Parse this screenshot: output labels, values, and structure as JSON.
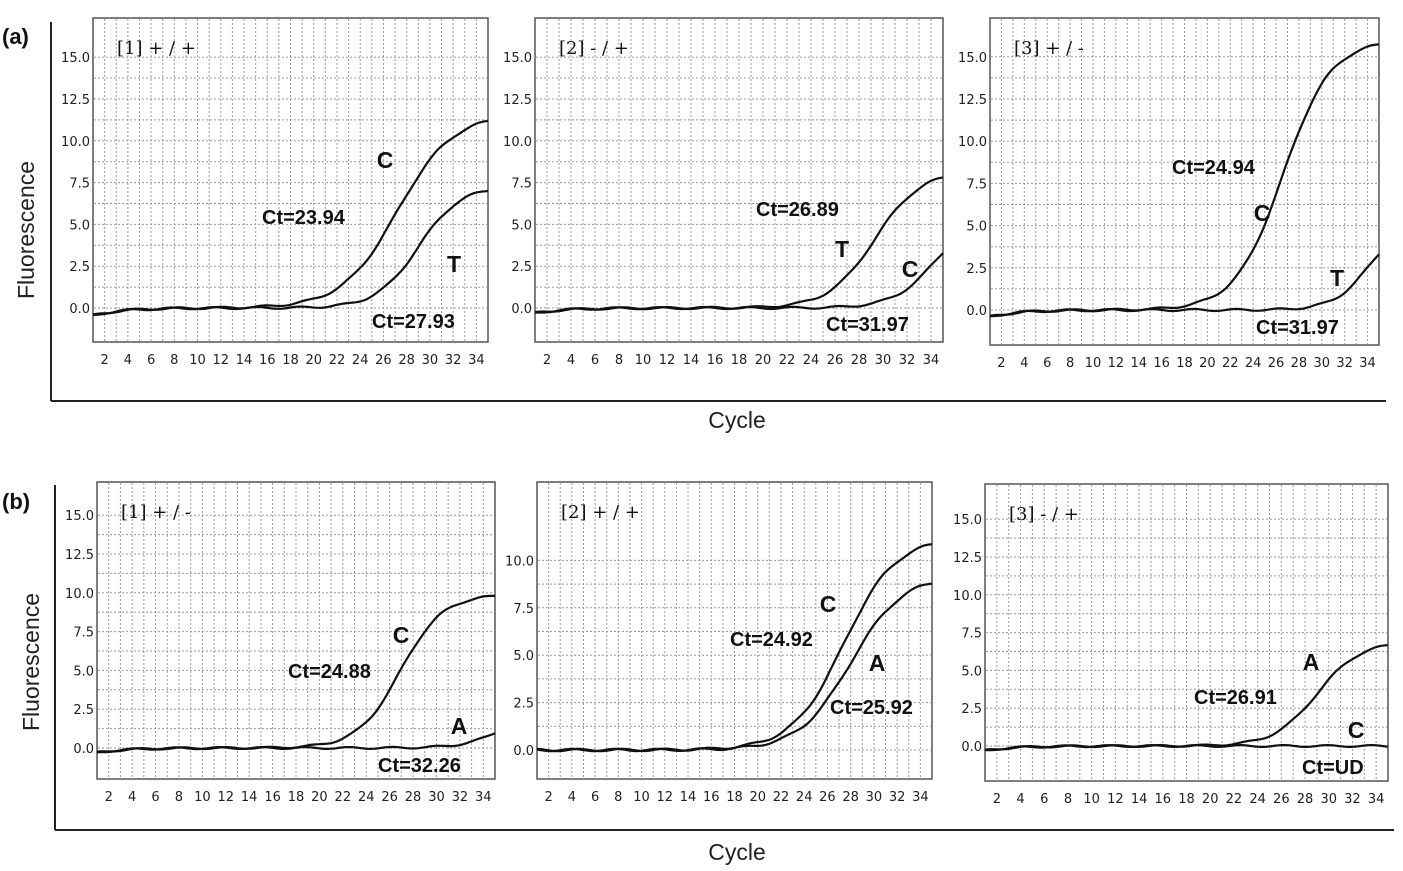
{
  "figure": {
    "rows": [
      {
        "panel_label": "(a)",
        "ylabel": "Fluorescence",
        "xlabel": "Cycle"
      },
      {
        "panel_label": "(b)",
        "ylabel": "Fluorescence",
        "xlabel": "Cycle"
      }
    ]
  },
  "chart_data": [
    {
      "type": "line",
      "title": "[1] + / +",
      "xlabel": "Cycle",
      "ylabel": "Fluorescence",
      "xlim": [
        1,
        35
      ],
      "ylim": [
        -1,
        17
      ],
      "xticks": [
        2,
        4,
        6,
        8,
        10,
        12,
        14,
        16,
        18,
        20,
        22,
        24,
        26,
        28,
        30,
        32,
        34
      ],
      "yticks": [
        0.0,
        2.5,
        5.0,
        7.5,
        10.0,
        12.5,
        15.0
      ],
      "grid": true,
      "series": [
        {
          "name": "C",
          "ct_label": "Ct=23.94",
          "baseline": -0.45,
          "plateau": 11.6,
          "midpoint": 27.2,
          "slope": 0.42
        },
        {
          "name": "T",
          "ct_label": "Ct=27.93",
          "baseline": -0.45,
          "plateau": 7.3,
          "midpoint": 29.0,
          "slope": 0.55
        }
      ]
    },
    {
      "type": "line",
      "title": "[2] - / +",
      "xlabel": "Cycle",
      "ylabel": "Fluorescence",
      "xlim": [
        1,
        35
      ],
      "ylim": [
        -1,
        17
      ],
      "xticks": [
        2,
        4,
        6,
        8,
        10,
        12,
        14,
        16,
        18,
        20,
        22,
        24,
        26,
        28,
        30,
        32,
        34
      ],
      "yticks": [
        0.0,
        2.5,
        5.0,
        7.5,
        10.0,
        12.5,
        15.0
      ],
      "grid": true,
      "series": [
        {
          "name": "T",
          "ct_label": "Ct=26.89",
          "baseline": -0.3,
          "plateau": 8.2,
          "midpoint": 29.3,
          "slope": 0.52
        },
        {
          "name": "C",
          "ct_label": "Ct=31.97",
          "baseline": -0.3,
          "plateau": 6.0,
          "midpoint": 34.6,
          "slope": 0.55
        }
      ]
    },
    {
      "type": "line",
      "title": "[3] + / -",
      "xlabel": "Cycle",
      "ylabel": "Fluorescence",
      "xlim": [
        1,
        35
      ],
      "ylim": [
        -1,
        17
      ],
      "xticks": [
        2,
        4,
        6,
        8,
        10,
        12,
        14,
        16,
        18,
        20,
        22,
        24,
        26,
        28,
        30,
        32,
        34
      ],
      "yticks": [
        0.0,
        2.5,
        5.0,
        7.5,
        10.0,
        12.5,
        15.0
      ],
      "grid": true,
      "series": [
        {
          "name": "C",
          "ct_label": "Ct=24.94",
          "baseline": -0.4,
          "plateau": 16.0,
          "midpoint": 26.6,
          "slope": 0.48
        },
        {
          "name": "T",
          "ct_label": "Ct=31.97",
          "baseline": -0.4,
          "plateau": 5.5,
          "midpoint": 34.3,
          "slope": 0.62
        }
      ]
    },
    {
      "type": "line",
      "title": "[1] + / -",
      "xlabel": "Cycle",
      "ylabel": "Fluorescence",
      "xlim": [
        1,
        35
      ],
      "ylim": [
        -1,
        17
      ],
      "xticks": [
        2,
        4,
        6,
        8,
        10,
        12,
        14,
        16,
        18,
        20,
        22,
        24,
        26,
        28,
        30,
        32,
        34
      ],
      "yticks": [
        0.0,
        2.5,
        5.0,
        7.5,
        10.0,
        12.5,
        15.0
      ],
      "grid": true,
      "series": [
        {
          "name": "C",
          "ct_label": "Ct=24.88",
          "baseline": -0.3,
          "plateau": 9.9,
          "midpoint": 26.9,
          "slope": 0.55
        },
        {
          "name": "A",
          "ct_label": "Ct=32.26",
          "baseline": -0.3,
          "plateau": 4.0,
          "midpoint": 37.0,
          "slope": 0.55
        }
      ]
    },
    {
      "type": "line",
      "title": "[2] + / +",
      "xlabel": "Cycle",
      "ylabel": "Fluorescence",
      "xlim": [
        1,
        35
      ],
      "ylim": [
        -1,
        12
      ],
      "xticks": [
        2,
        4,
        6,
        8,
        10,
        12,
        14,
        16,
        18,
        20,
        22,
        24,
        26,
        28,
        30,
        32,
        34
      ],
      "yticks": [
        0.0,
        2.5,
        5.0,
        7.5,
        10.0
      ],
      "grid": true,
      "series": [
        {
          "name": "C",
          "ct_label": "Ct=24.92",
          "baseline": 0.0,
          "plateau": 11.2,
          "midpoint": 27.4,
          "slope": 0.45
        },
        {
          "name": "A",
          "ct_label": "Ct=25.92",
          "baseline": 0.0,
          "plateau": 9.2,
          "midpoint": 28.0,
          "slope": 0.45
        }
      ]
    },
    {
      "type": "line",
      "title": "[3] - / +",
      "xlabel": "Cycle",
      "ylabel": "Fluorescence",
      "xlim": [
        1,
        35
      ],
      "ylim": [
        -1,
        17
      ],
      "xticks": [
        2,
        4,
        6,
        8,
        10,
        12,
        14,
        16,
        18,
        20,
        22,
        24,
        26,
        28,
        30,
        32,
        34
      ],
      "yticks": [
        0.0,
        2.5,
        5.0,
        7.5,
        10.0,
        12.5,
        15.0
      ],
      "grid": true,
      "series": [
        {
          "name": "A",
          "ct_label": "Ct=26.91",
          "baseline": -0.3,
          "plateau": 6.9,
          "midpoint": 29.0,
          "slope": 0.55
        },
        {
          "name": "C",
          "ct_label": "Ct=UD",
          "baseline": -0.3,
          "plateau": 0.0,
          "midpoint": 40.0,
          "slope": 0.5
        }
      ]
    }
  ]
}
